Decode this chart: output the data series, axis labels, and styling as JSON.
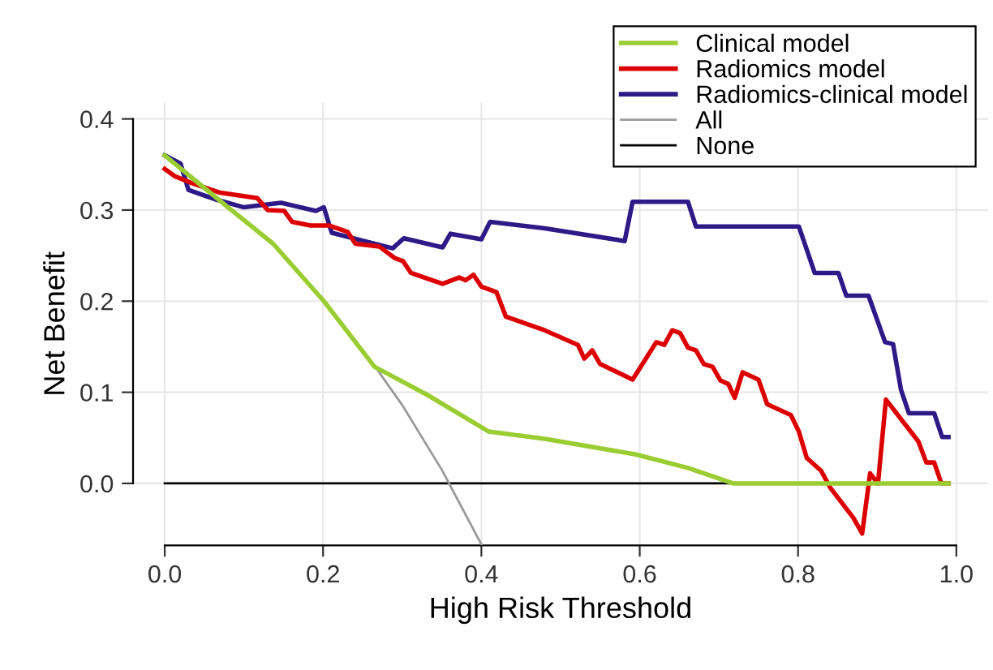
{
  "chart_data": {
    "type": "line",
    "xlabel": "High Risk Threshold",
    "ylabel": "Net Benefit",
    "xlim": [
      -0.04,
      1.04
    ],
    "ylim": [
      -0.068,
      0.418
    ],
    "xticks": [
      {
        "value": 0,
        "label": "0.0"
      },
      0.2,
      0.4,
      0.6,
      0.8,
      {
        "value": 1,
        "label": "1.0"
      }
    ],
    "yticks": [
      {
        "value": 0,
        "label": "0.0"
      },
      0.1,
      0.2,
      0.3,
      0.4
    ],
    "grid": true,
    "legend": "top right",
    "line_style": "solid",
    "marker": "none",
    "series": [
      {
        "name": "Clinical model",
        "color": "#9acd32",
        "x": [
          0,
          0.07,
          0.137,
          0.201,
          0.265,
          0.332,
          0.409,
          0.48,
          0.594,
          0.661,
          0.718,
          0.99
        ],
        "values": [
          0.36,
          0.31,
          0.263,
          0.2,
          0.128,
          0.097,
          0.057,
          0.049,
          0.032,
          0.017,
          0,
          0
        ]
      },
      {
        "name": "Radiomics model",
        "color": "#dd0000",
        "x": [
          0,
          0.013,
          0.036,
          0.07,
          0.117,
          0.13,
          0.151,
          0.161,
          0.184,
          0.208,
          0.231,
          0.241,
          0.271,
          0.291,
          0.301,
          0.311,
          0.351,
          0.372,
          0.38,
          0.39,
          0.4,
          0.419,
          0.431,
          0.48,
          0.522,
          0.53,
          0.54,
          0.55,
          0.591,
          0.621,
          0.631,
          0.641,
          0.651,
          0.661,
          0.671,
          0.681,
          0.692,
          0.702,
          0.712,
          0.72,
          0.73,
          0.75,
          0.761,
          0.791,
          0.801,
          0.811,
          0.829,
          0.841,
          0.87,
          0.881,
          0.891,
          0.901,
          0.911,
          0.952,
          0.962,
          0.972,
          0.981,
          0.99
        ],
        "values": [
          0.345,
          0.337,
          0.329,
          0.319,
          0.313,
          0.3,
          0.299,
          0.287,
          0.283,
          0.283,
          0.276,
          0.263,
          0.26,
          0.247,
          0.244,
          0.231,
          0.219,
          0.226,
          0.223,
          0.229,
          0.216,
          0.21,
          0.183,
          0.168,
          0.152,
          0.137,
          0.146,
          0.131,
          0.114,
          0.155,
          0.152,
          0.168,
          0.165,
          0.149,
          0.146,
          0.131,
          0.128,
          0.113,
          0.109,
          0.094,
          0.122,
          0.114,
          0.087,
          0.075,
          0.057,
          0.028,
          0.014,
          -0.005,
          -0.038,
          -0.055,
          0.011,
          0,
          0.092,
          0.046,
          0.023,
          0.023,
          0,
          0
        ]
      },
      {
        "name": "Radiomics-clinical model",
        "color": "#2e1a87",
        "x": [
          0,
          0.02,
          0.03,
          0.063,
          0.1,
          0.147,
          0.191,
          0.201,
          0.211,
          0.288,
          0.302,
          0.351,
          0.361,
          0.4,
          0.411,
          0.48,
          0.581,
          0.591,
          0.661,
          0.671,
          0.801,
          0.821,
          0.851,
          0.861,
          0.889,
          0.91,
          0.92,
          0.93,
          0.94,
          0.972,
          0.982,
          0.99
        ],
        "values": [
          0.36,
          0.351,
          0.322,
          0.312,
          0.303,
          0.308,
          0.299,
          0.303,
          0.275,
          0.258,
          0.269,
          0.259,
          0.274,
          0.268,
          0.287,
          0.28,
          0.266,
          0.309,
          0.309,
          0.282,
          0.282,
          0.231,
          0.231,
          0.206,
          0.206,
          0.155,
          0.153,
          0.103,
          0.077,
          0.077,
          0.051,
          0.051
        ]
      },
      {
        "name": "All",
        "color": "#999999",
        "x": [
          0,
          0.05,
          0.1,
          0.15,
          0.2,
          0.25,
          0.27,
          0.3,
          0.35,
          0.4
        ],
        "values": [
          0.36,
          0.326,
          null,
          null,
          null,
          null,
          0.123,
          0.086,
          0.015,
          -0.067
        ]
      },
      {
        "name": "None",
        "color": "#000000",
        "x": [
          0,
          0.99
        ],
        "values": [
          0,
          0
        ]
      }
    ]
  }
}
